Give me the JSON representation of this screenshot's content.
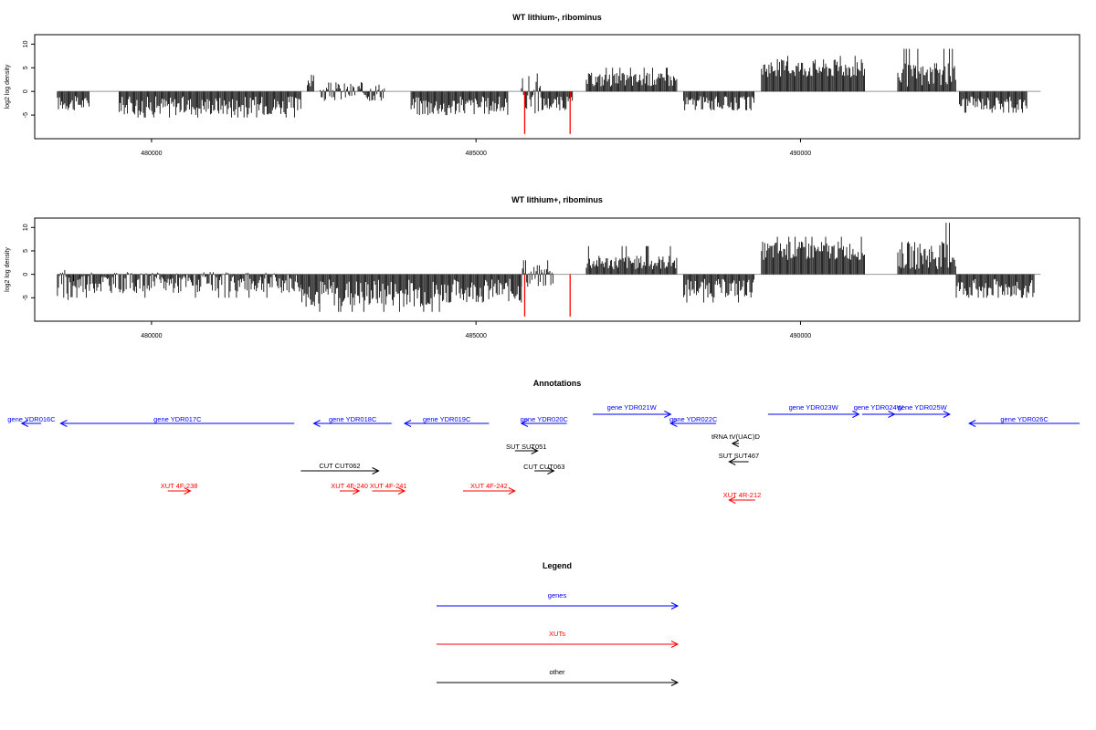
{
  "colors": {
    "genes": "#0000ff",
    "xuts": "#ff0000",
    "other": "#000000",
    "zero_line": "#999999"
  },
  "chart_data": [
    {
      "type": "bar",
      "title": "WT lithium-, ribominus",
      "ylabel": "log2 log density",
      "xlim": [
        478200,
        494300
      ],
      "ylim": [
        -10,
        12
      ],
      "x_ticks": [
        {
          "value": 480000,
          "label": "480000"
        },
        {
          "value": 485000,
          "label": "485000"
        },
        {
          "value": 490000,
          "label": "490000"
        }
      ],
      "y_ticks": [
        {
          "value": -5,
          "label": "-5"
        },
        {
          "value": 0,
          "label": "0"
        },
        {
          "value": 5,
          "label": "5"
        },
        {
          "value": 10,
          "label": "10"
        }
      ],
      "red_markers": [
        {
          "x": 485750,
          "value": -9
        },
        {
          "x": 486450,
          "value": -9
        }
      ],
      "segments": [
        {
          "x0": 478550,
          "x1": 479050,
          "min": -4,
          "max": -1,
          "peak": -4
        },
        {
          "x0": 479500,
          "x1": 482300,
          "min": -5,
          "max": -1,
          "peak": -5.5
        },
        {
          "x0": 482400,
          "x1": 482500,
          "min": 1,
          "max": 3.5,
          "peak": 3.5
        },
        {
          "x0": 482600,
          "x1": 483600,
          "min": -2,
          "max": 2,
          "peak": -2
        },
        {
          "x0": 484000,
          "x1": 485500,
          "min": -5,
          "max": -1,
          "peak": -5
        },
        {
          "x0": 485700,
          "x1": 486000,
          "min": -5,
          "max": 4,
          "peak": 4
        },
        {
          "x0": 486000,
          "x1": 486500,
          "min": -4,
          "max": -1,
          "peak": -4
        },
        {
          "x0": 486700,
          "x1": 488100,
          "min": 1,
          "max": 4,
          "peak": 5
        },
        {
          "x0": 488200,
          "x1": 489300,
          "min": -4,
          "max": -1,
          "peak": -4
        },
        {
          "x0": 489400,
          "x1": 491000,
          "min": 3,
          "max": 7,
          "peak": 7.5
        },
        {
          "x0": 491500,
          "x1": 492400,
          "min": 1,
          "max": 6,
          "peak": 9
        },
        {
          "x0": 492450,
          "x1": 493500,
          "min": -4,
          "max": -1,
          "peak": -4.5
        }
      ]
    },
    {
      "type": "bar",
      "title": "WT lithium+, ribominus",
      "ylabel": "log2 log density",
      "xlim": [
        478200,
        494300
      ],
      "ylim": [
        -10,
        12
      ],
      "x_ticks": [
        {
          "value": 480000,
          "label": "480000"
        },
        {
          "value": 485000,
          "label": "485000"
        },
        {
          "value": 490000,
          "label": "490000"
        }
      ],
      "y_ticks": [
        {
          "value": -5,
          "label": "-5"
        },
        {
          "value": 0,
          "label": "0"
        },
        {
          "value": 5,
          "label": "5"
        },
        {
          "value": 10,
          "label": "10"
        }
      ],
      "red_markers": [
        {
          "x": 485750,
          "value": -9
        },
        {
          "x": 486450,
          "value": -9
        }
      ],
      "segments": [
        {
          "x0": 478550,
          "x1": 478800,
          "min": -6,
          "max": 1,
          "peak": -6
        },
        {
          "x0": 478800,
          "x1": 482300,
          "min": -4,
          "max": 0.5,
          "peak": -5
        },
        {
          "x0": 482300,
          "x1": 484500,
          "min": -7,
          "max": -1,
          "peak": -8
        },
        {
          "x0": 484500,
          "x1": 485700,
          "min": -6,
          "max": -1,
          "peak": -6
        },
        {
          "x0": 485700,
          "x1": 486200,
          "min": -3,
          "max": 2,
          "peak": 3
        },
        {
          "x0": 486700,
          "x1": 488100,
          "min": 1,
          "max": 4,
          "peak": 6
        },
        {
          "x0": 488200,
          "x1": 489300,
          "min": -5,
          "max": -1,
          "peak": -6
        },
        {
          "x0": 489400,
          "x1": 491000,
          "min": 3,
          "max": 7,
          "peak": 8
        },
        {
          "x0": 491500,
          "x1": 492400,
          "min": 1,
          "max": 7,
          "peak": 11
        },
        {
          "x0": 492400,
          "x1": 493600,
          "min": -5,
          "max": -1,
          "peak": -5
        }
      ]
    }
  ],
  "annotations": {
    "title": "Annotations",
    "genes": [
      {
        "label": "gene YDR016C",
        "x0": 478000,
        "x1": 478300,
        "dir": "left",
        "row": 1
      },
      {
        "label": "gene YDR017C",
        "x0": 478600,
        "x1": 482200,
        "dir": "left",
        "row": 1
      },
      {
        "label": "gene YDR018C",
        "x0": 482500,
        "x1": 483700,
        "dir": "left",
        "row": 1
      },
      {
        "label": "gene YDR019C",
        "x0": 483900,
        "x1": 485200,
        "dir": "left",
        "row": 1
      },
      {
        "label": "gene YDR020C",
        "x0": 485700,
        "x1": 486400,
        "dir": "left",
        "row": 1
      },
      {
        "label": "gene YDR021W",
        "x0": 486800,
        "x1": 488000,
        "dir": "right",
        "row": 0
      },
      {
        "label": "gene YDR022C",
        "x0": 488000,
        "x1": 488700,
        "dir": "left",
        "row": 1
      },
      {
        "label": "gene YDR023W",
        "x0": 489500,
        "x1": 490900,
        "dir": "right",
        "row": 0
      },
      {
        "label": "gene YDR024W",
        "x0": 490950,
        "x1": 491450,
        "dir": "right",
        "row": 0
      },
      {
        "label": "gene YDR025W",
        "x0": 491450,
        "x1": 492300,
        "dir": "right",
        "row": 0
      },
      {
        "label": "gene YDR026C",
        "x0": 492600,
        "x1": 494300,
        "dir": "left",
        "row": 1
      }
    ],
    "other": [
      {
        "label": "SUT SUT051",
        "x0": 485600,
        "x1": 485950,
        "dir": "right",
        "row": 0
      },
      {
        "label": "tRNA tV(UAC)D",
        "x0": 488950,
        "x1": 489050,
        "dir": "left",
        "row": 1
      },
      {
        "label": "CUT CUT062",
        "x0": 482300,
        "x1": 483500,
        "dir": "right",
        "row": 2
      },
      {
        "label": "SUT SUT467",
        "x0": 488900,
        "x1": 489200,
        "dir": "left",
        "row": 2
      },
      {
        "label": "CUT CUT063",
        "x0": 485900,
        "x1": 486200,
        "dir": "right",
        "row": 3
      }
    ],
    "xuts": [
      {
        "label": "XUT 4F-238",
        "x0": 480250,
        "x1": 480600,
        "dir": "right",
        "row": 0
      },
      {
        "label": "XUT 4F-240",
        "x0": 482900,
        "x1": 483200,
        "dir": "right",
        "row": 0
      },
      {
        "label": "XUT 4F-241",
        "x0": 483400,
        "x1": 483900,
        "dir": "right",
        "row": 0
      },
      {
        "label": "XUT 4F-242",
        "x0": 484800,
        "x1": 485600,
        "dir": "right",
        "row": 0
      },
      {
        "label": "XUT 4R-212",
        "x0": 488900,
        "x1": 489300,
        "dir": "left",
        "row": 1
      }
    ]
  },
  "legend": {
    "title": "Legend",
    "items": [
      {
        "label": "genes",
        "color": "#0000ff"
      },
      {
        "label": "XUTs",
        "color": "#ff0000"
      },
      {
        "label": "other",
        "color": "#000000"
      }
    ]
  }
}
